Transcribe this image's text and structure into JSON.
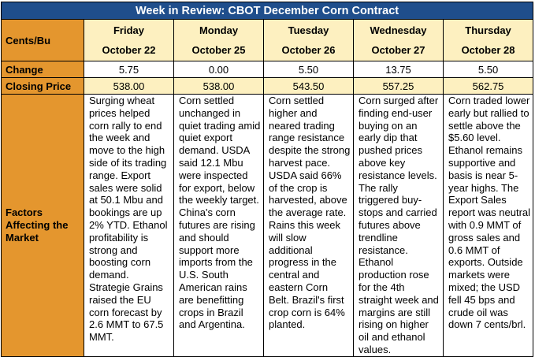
{
  "title": "Week in Review: CBOT December Corn Contract",
  "row_labels": {
    "cents": "Cents/Bu",
    "change": "Change",
    "closing": "Closing Price",
    "factors": "Factors Affecting the Market"
  },
  "days": [
    {
      "day": "Friday",
      "date": "October 22",
      "change": "5.75",
      "closing": "538.00",
      "factors": "Surging wheat prices helped corn rally to end the week and move to the high side of its trading range. Export sales were solid at 50.1 Mbu and bookings are up 2% YTD. Ethanol profitability is strong and boosting corn demand. Strategie Grains raised the EU corn forecast by 2.6 MMT to 67.5 MMT."
    },
    {
      "day": "Monday",
      "date": "October 25",
      "change": "0.00",
      "closing": "538.00",
      "factors": "Corn settled unchanged in quiet trading amid quiet export demand. USDA said 12.1 Mbu were inspected for export, below the weekly target. China's corn futures are rising and should support more imports from the U.S. South American rains are benefitting crops in Brazil and Argentina."
    },
    {
      "day": "Tuesday",
      "date": "October 26",
      "change": "5.50",
      "closing": "543.50",
      "factors": "Corn settled higher and neared trading range resistance despite the strong harvest pace. USDA said 66% of the crop is harvested, above the average rate. Rains this week will slow additional progress in the central and eastern Corn Belt. Brazil's first crop corn is 64% planted."
    },
    {
      "day": "Wednesday",
      "date": "October 27",
      "change": "13.75",
      "closing": "557.25",
      "factors": "Corn surged after finding end-user buying on an early dip that pushed prices above key resistance levels. The rally triggered buy-stops and carried futures above trendline resistance. Ethanol production rose for the 4th straight week and margins are still rising on higher oil and ethanol values."
    },
    {
      "day": "Thursday",
      "date": "October 28",
      "change": "5.50",
      "closing": "562.75",
      "factors": "Corn traded lower early but rallied to settle above the $5.60 level. Ethanol remains supportive and basis is near 5-year highs. The Export Sales report was neutral with 0.9 MMT of gross sales and 0.6 MMT of exports. Outside markets were mixed; the USD fell 45 bps and crude oil was down 7 cents/brl."
    }
  ]
}
